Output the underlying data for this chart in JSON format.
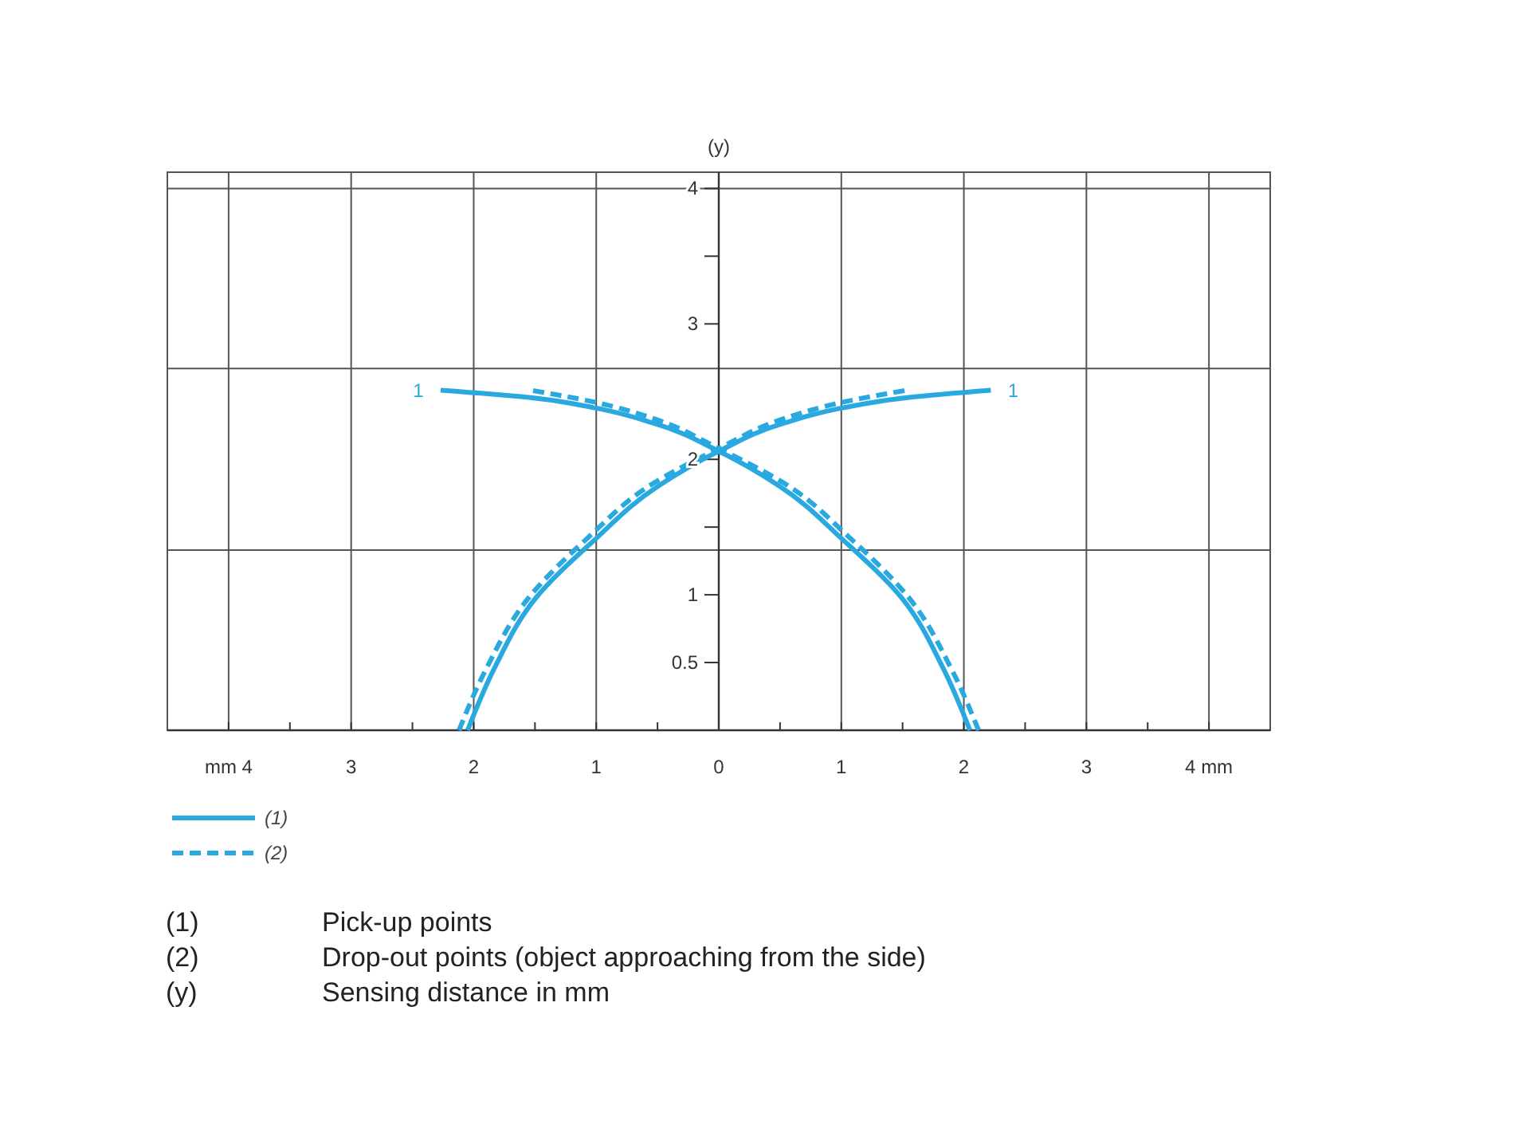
{
  "chart_data": {
    "type": "line",
    "ylabel": "(y)",
    "xlim": [
      -4.5,
      4.5
    ],
    "xticks": [
      {
        "value": -4,
        "label": "mm 4"
      },
      {
        "value": -3.5,
        "label": null
      },
      {
        "value": -3,
        "label": "3"
      },
      {
        "value": -2.5,
        "label": null
      },
      {
        "value": -2,
        "label": "2"
      },
      {
        "value": -1.5,
        "label": null
      },
      {
        "value": -1,
        "label": "1"
      },
      {
        "value": -0.5,
        "label": null
      },
      0,
      {
        "value": 0.5,
        "label": null
      },
      {
        "value": 1,
        "label": "1"
      },
      {
        "value": 1.5,
        "label": null
      },
      2,
      {
        "value": 2.5,
        "label": null
      },
      3,
      {
        "value": 3.5,
        "label": null
      },
      {
        "value": 4,
        "label": "4 mm"
      }
    ],
    "ylim": [
      0,
      4.12
    ],
    "yticks": [
      0.5,
      1,
      {
        "value": 1.5,
        "label": null
      },
      2,
      3,
      {
        "value": 3.5,
        "label": null
      },
      4
    ],
    "grid": "x",
    "ref_lines": [
      {
        "axis": "y",
        "value": 1.33,
        "color": "#555555"
      },
      {
        "axis": "y",
        "value": 2.67,
        "color": "#555555"
      },
      {
        "axis": "y",
        "value": 4,
        "color": "#555555"
      }
    ],
    "legend": "bottom left",
    "series": [
      {
        "name": "(1)",
        "color": "#29a9e0",
        "line_style": "solid",
        "x": [
          -2.05,
          -1.83,
          -1.49,
          -1.02,
          -0.5,
          0,
          0.54,
          1.01,
          1.58,
          2.22
        ],
        "values": [
          0,
          0.46,
          0.98,
          1.4,
          1.8,
          2.06,
          2.27,
          2.38,
          2.46,
          2.51
        ]
      },
      {
        "color": "#29a9e0",
        "line_style": "solid",
        "x": [
          2.05,
          1.83,
          1.49,
          1.02,
          0.5,
          0,
          -0.54,
          -1.01,
          -1.58,
          -2.27
        ],
        "values": [
          0,
          0.46,
          0.98,
          1.4,
          1.8,
          2.06,
          2.27,
          2.38,
          2.46,
          2.51
        ]
      },
      {
        "name": "(2)",
        "color": "#29a9e0",
        "line_style": "dashed",
        "x": [
          -2.12,
          -1.9,
          -1.55,
          -1.07,
          -0.54,
          0,
          0.53,
          1.0,
          1.53
        ],
        "values": [
          0,
          0.45,
          0.98,
          1.42,
          1.82,
          2.08,
          2.3,
          2.42,
          2.51
        ]
      },
      {
        "color": "#29a9e0",
        "line_style": "dashed",
        "x": [
          2.12,
          1.9,
          1.55,
          1.07,
          0.54,
          0,
          -0.53,
          -1.0,
          -1.53
        ],
        "values": [
          0,
          0.45,
          0.98,
          1.42,
          1.82,
          2.08,
          2.3,
          2.42,
          2.51
        ]
      }
    ],
    "annotations": [
      "1",
      "1",
      "(1)\tPick-up points",
      "(2)\tDrop-out points (object approaching from the side)",
      "(y)\tSensing distance in mm"
    ]
  }
}
